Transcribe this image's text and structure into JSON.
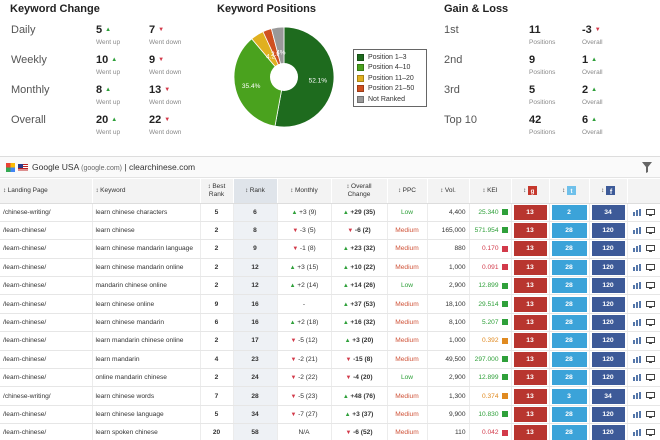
{
  "keyword_change": {
    "title": "Keyword Change",
    "rows": [
      {
        "label": "Daily",
        "up": "5",
        "up_label": "Went up",
        "down": "7",
        "down_label": "Went down"
      },
      {
        "label": "Weekly",
        "up": "10",
        "up_label": "Went up",
        "down": "9",
        "down_label": "Went down"
      },
      {
        "label": "Monthly",
        "up": "8",
        "up_label": "Went up",
        "down": "13",
        "down_label": "Went down"
      },
      {
        "label": "Overall",
        "up": "20",
        "up_label": "Went up",
        "down": "22",
        "down_label": "Went down"
      }
    ]
  },
  "keyword_positions": {
    "title": "Keyword Positions",
    "legend": [
      "Position 1–3",
      "Position 4–10",
      "Position 11–20",
      "Position 21–50",
      "Not Ranked"
    ],
    "slice_labels": [
      "52.1%",
      "35.4%",
      "4.2",
      "2.8",
      "4%"
    ],
    "colors": [
      "#1e6b1e",
      "#4aa21e",
      "#e0b020",
      "#d05020",
      "#999999"
    ]
  },
  "chart_data": {
    "type": "pie",
    "categories": [
      "Position 1–3",
      "Position 4–10",
      "Position 11–20",
      "Position 21–50",
      "Not Ranked"
    ],
    "values": [
      52.1,
      35.4,
      4.2,
      2.8,
      4.0
    ],
    "legend": "right"
  },
  "gain_loss": {
    "title": "Gain & Loss",
    "rows": [
      {
        "label": "1st",
        "positions": "11",
        "positions_label": "Positions",
        "overall": "-3",
        "overall_dir": "down",
        "overall_label": "Overall"
      },
      {
        "label": "2nd",
        "positions": "9",
        "positions_label": "Positions",
        "overall": "1",
        "overall_dir": "up",
        "overall_label": "Overall"
      },
      {
        "label": "3rd",
        "positions": "5",
        "positions_label": "Positions",
        "overall": "2",
        "overall_dir": "up",
        "overall_label": "Overall"
      },
      {
        "label": "Top 10",
        "positions": "42",
        "positions_label": "Positions",
        "overall": "6",
        "overall_dir": "up",
        "overall_label": "Overall"
      }
    ]
  },
  "engine": {
    "name": "Google USA",
    "domain": "(google.com)",
    "separator": "|",
    "site": "clearchinese.com"
  },
  "table": {
    "headers": [
      "Landing Page",
      "Keyword",
      "Best Rank",
      "Rank",
      "Monthly",
      "Overall Change",
      "PPC",
      "Vol.",
      "KEI",
      "",
      "",
      "",
      ""
    ],
    "rows": [
      {
        "page": "/chinese-writing/",
        "keyword": "learn chinese characters",
        "best": "5",
        "rank": "6",
        "monthly_dir": "up",
        "monthly": "+3 (9)",
        "overall_dir": "up",
        "overall": "+29 (35)",
        "ppc": "Low",
        "vol": "4,400",
        "kei": "25.340",
        "kei_color": "#2fa03a",
        "gp": "13",
        "tw": "2",
        "fb": "34"
      },
      {
        "page": "/learn-chinese/",
        "keyword": "learn chinese",
        "best": "2",
        "rank": "8",
        "monthly_dir": "down",
        "monthly": "-3 (5)",
        "overall_dir": "down",
        "overall": "-6 (2)",
        "ppc": "Medium",
        "vol": "165,000",
        "kei": "571.954",
        "kei_color": "#2fa03a",
        "gp": "13",
        "tw": "28",
        "fb": "120"
      },
      {
        "page": "/learn-chinese/",
        "keyword": "learn chinese mandarin language",
        "best": "2",
        "rank": "9",
        "monthly_dir": "down",
        "monthly": "-1 (8)",
        "overall_dir": "up",
        "overall": "+23 (32)",
        "ppc": "Medium",
        "vol": "880",
        "kei": "0.170",
        "kei_color": "#d23a4a",
        "gp": "13",
        "tw": "28",
        "fb": "120"
      },
      {
        "page": "/learn-chinese/",
        "keyword": "learn chinese mandarin online",
        "best": "2",
        "rank": "12",
        "monthly_dir": "up",
        "monthly": "+3 (15)",
        "overall_dir": "up",
        "overall": "+10 (22)",
        "ppc": "Medium",
        "vol": "1,000",
        "kei": "0.091",
        "kei_color": "#d23a4a",
        "gp": "13",
        "tw": "28",
        "fb": "120"
      },
      {
        "page": "/learn-chinese/",
        "keyword": "mandarin chinese online",
        "best": "2",
        "rank": "12",
        "monthly_dir": "up",
        "monthly": "+2 (14)",
        "overall_dir": "up",
        "overall": "+14 (26)",
        "ppc": "Low",
        "vol": "2,900",
        "kei": "12.899",
        "kei_color": "#2fa03a",
        "gp": "13",
        "tw": "28",
        "fb": "120"
      },
      {
        "page": "/learn-chinese/",
        "keyword": "learn chinese online",
        "best": "9",
        "rank": "16",
        "monthly_dir": "none",
        "monthly": "-",
        "overall_dir": "up",
        "overall": "+37 (53)",
        "ppc": "Medium",
        "vol": "18,100",
        "kei": "29.514",
        "kei_color": "#2fa03a",
        "gp": "13",
        "tw": "28",
        "fb": "120"
      },
      {
        "page": "/learn-chinese/",
        "keyword": "learn chinese mandarin",
        "best": "6",
        "rank": "16",
        "monthly_dir": "up",
        "monthly": "+2 (18)",
        "overall_dir": "up",
        "overall": "+16 (32)",
        "ppc": "Medium",
        "vol": "8,100",
        "kei": "5.207",
        "kei_color": "#2fa03a",
        "gp": "13",
        "tw": "28",
        "fb": "120"
      },
      {
        "page": "/learn-chinese/",
        "keyword": "learn mandarin chinese online",
        "best": "2",
        "rank": "17",
        "monthly_dir": "down",
        "monthly": "-5 (12)",
        "overall_dir": "up",
        "overall": "+3 (20)",
        "ppc": "Medium",
        "vol": "1,000",
        "kei": "0.392",
        "kei_color": "#e08a20",
        "gp": "13",
        "tw": "28",
        "fb": "120"
      },
      {
        "page": "/learn-chinese/",
        "keyword": "learn mandarin",
        "best": "4",
        "rank": "23",
        "monthly_dir": "down",
        "monthly": "-2 (21)",
        "overall_dir": "down",
        "overall": "-15 (8)",
        "ppc": "Medium",
        "vol": "49,500",
        "kei": "297.000",
        "kei_color": "#2fa03a",
        "gp": "13",
        "tw": "28",
        "fb": "120"
      },
      {
        "page": "/learn-chinese/",
        "keyword": "online mandarin chinese",
        "best": "2",
        "rank": "24",
        "monthly_dir": "down",
        "monthly": "-2 (22)",
        "overall_dir": "down",
        "overall": "-4 (20)",
        "ppc": "Low",
        "vol": "2,900",
        "kei": "12.899",
        "kei_color": "#2fa03a",
        "gp": "13",
        "tw": "28",
        "fb": "120"
      },
      {
        "page": "/chinese-writing/",
        "keyword": "learn chinese words",
        "best": "7",
        "rank": "28",
        "monthly_dir": "down",
        "monthly": "-5 (23)",
        "overall_dir": "up",
        "overall": "+48 (76)",
        "ppc": "Medium",
        "vol": "1,300",
        "kei": "0.374",
        "kei_color": "#e08a20",
        "gp": "13",
        "tw": "3",
        "fb": "34"
      },
      {
        "page": "/learn-chinese/",
        "keyword": "learn chinese language",
        "best": "5",
        "rank": "34",
        "monthly_dir": "down",
        "monthly": "-7 (27)",
        "overall_dir": "up",
        "overall": "+3 (37)",
        "ppc": "Medium",
        "vol": "9,900",
        "kei": "10.830",
        "kei_color": "#2fa03a",
        "gp": "13",
        "tw": "28",
        "fb": "120"
      },
      {
        "page": "/learn-chinese/",
        "keyword": "learn spoken chinese",
        "best": "20",
        "rank": "58",
        "monthly_dir": "none",
        "monthly": "N/A",
        "overall_dir": "down",
        "overall": "-6 (52)",
        "ppc": "Medium",
        "vol": "110",
        "kei": "0.042",
        "kei_color": "#d23a4a",
        "gp": "13",
        "tw": "28",
        "fb": "120"
      }
    ]
  }
}
